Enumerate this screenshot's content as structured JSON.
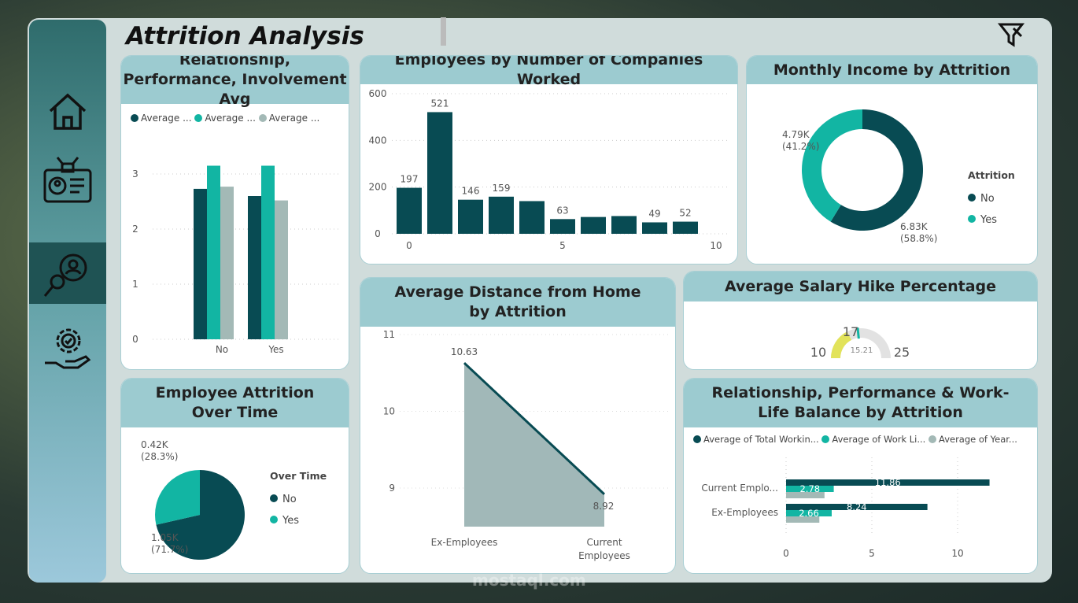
{
  "title": "Attrition Analysis",
  "colors": {
    "dark": "#084b53",
    "teal": "#12b5a3",
    "grey": "#a3b9b6",
    "yellow": "#e2e35a"
  },
  "nav": [
    {
      "icon": "home-icon"
    },
    {
      "icon": "id-card-icon"
    },
    {
      "icon": "analysis-icon",
      "active": true
    },
    {
      "icon": "gear-hand-icon"
    }
  ],
  "watermark": "mostaql.com",
  "chart_data": [
    {
      "id": "rel",
      "type": "bar",
      "title": "Relationship, Performance, Involvement Avg",
      "legend": [
        "Average ...",
        "Average ...",
        "Average ..."
      ],
      "categories": [
        "No",
        "Yes"
      ],
      "series": [
        {
          "name": "Average ...",
          "values": [
            2.73,
            2.6
          ]
        },
        {
          "name": "Average ...",
          "values": [
            3.15,
            3.15
          ]
        },
        {
          "name": "Average ...",
          "values": [
            2.77,
            2.52
          ]
        }
      ],
      "yticks": [
        "0",
        "1",
        "2",
        "3"
      ],
      "ylim": [
        0,
        3.5
      ]
    },
    {
      "id": "comp",
      "type": "bar",
      "title": "Employees by Number of Companies Worked",
      "x": [
        0,
        1,
        2,
        3,
        4,
        5,
        6,
        7,
        8,
        9
      ],
      "values": [
        197,
        521,
        146,
        159,
        140,
        63,
        72,
        76,
        49,
        52
      ],
      "labels": [
        "197",
        "521",
        "146",
        "159",
        "",
        "63",
        "",
        "",
        "49",
        "52"
      ],
      "yticks": [
        "0",
        "200",
        "400",
        "600"
      ],
      "xticks": [
        "0",
        "5",
        "10"
      ],
      "ylim": [
        0,
        600
      ]
    },
    {
      "id": "income",
      "type": "pie",
      "title": "Monthly Income by Attrition",
      "legend_title": "Attrition",
      "slices": [
        {
          "label": "No",
          "value": 6.83,
          "text": "6.83K",
          "pct": "(58.8%)"
        },
        {
          "label": "Yes",
          "value": 4.79,
          "text": "4.79K",
          "pct": "(41.2%)"
        }
      ]
    },
    {
      "id": "dist",
      "type": "area",
      "title": "Average Distance from Home by Attrition",
      "categories": [
        "Ex-Employees",
        "Current Employees"
      ],
      "values": [
        10.63,
        8.92
      ],
      "labels": [
        "10.63",
        "8.92"
      ],
      "yticks": [
        "9",
        "10",
        "11"
      ],
      "ylim": [
        8.5,
        11
      ]
    },
    {
      "id": "hike",
      "type": "gauge",
      "title": "Average Salary Hike Percentage",
      "value": 15.21,
      "value_text": "15.21",
      "min": "10",
      "max": "25",
      "target": "17"
    },
    {
      "id": "ot",
      "type": "pie",
      "title": "Employee Attrition Over Time",
      "legend_title": "Over Time",
      "slices": [
        {
          "label": "No",
          "value": 1.05,
          "text": "1.05K",
          "pct": "(71.7%)"
        },
        {
          "label": "Yes",
          "value": 0.42,
          "text": "0.42K",
          "pct": "(28.3%)"
        }
      ]
    },
    {
      "id": "wlb",
      "type": "hbar",
      "title": "Relationship, Performance & Work-Life Balance by Attrition",
      "legend": [
        "Average of Total Workin...",
        "Average of Work Li...",
        "Average of Year..."
      ],
      "categories": [
        "Current Emplo...",
        "Ex-Employees"
      ],
      "series": [
        {
          "values": [
            11.86,
            8.24
          ],
          "labels": [
            "11.86",
            "8.24"
          ]
        },
        {
          "values": [
            2.78,
            2.66
          ],
          "labels": [
            "2.78",
            "2.66"
          ]
        },
        {
          "values": [
            2.24,
            1.94
          ],
          "labels": [
            "",
            ""
          ]
        }
      ],
      "xticks": [
        "0",
        "5",
        "10"
      ],
      "xlim": [
        0,
        12.5
      ]
    }
  ]
}
